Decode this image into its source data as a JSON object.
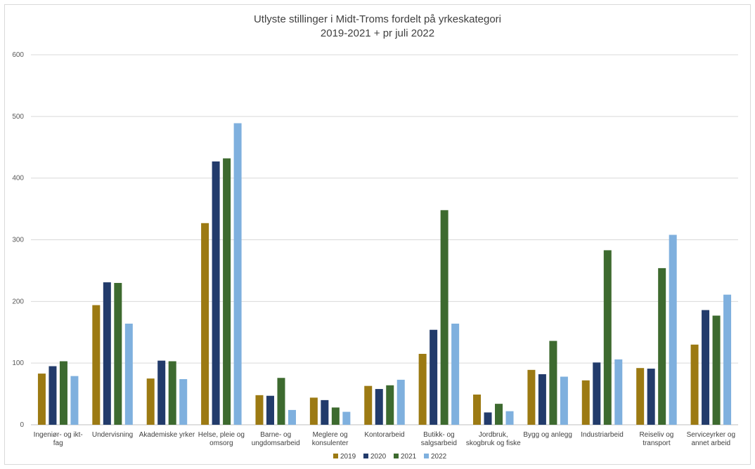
{
  "chart_data": {
    "type": "bar",
    "title": "Utlyste stillinger i Midt-Troms fordelt på yrkeskategori",
    "subtitle": "2019-2021 + pr juli 2022",
    "xlabel": "",
    "ylabel": "",
    "ylim": [
      0,
      600
    ],
    "yticks": [
      0,
      100,
      200,
      300,
      400,
      500,
      600
    ],
    "grid": true,
    "legend_position": "bottom",
    "categories": [
      [
        "Ingeniør- og ikt-",
        "fag"
      ],
      [
        "Undervisning"
      ],
      [
        "Akademiske yrker"
      ],
      [
        "Helse, pleie og",
        "omsorg"
      ],
      [
        "Barne- og",
        "ungdomsarbeid"
      ],
      [
        "Meglere og",
        "konsulenter"
      ],
      [
        "Kontorarbeid"
      ],
      [
        "Butikk- og",
        "salgsarbeid"
      ],
      [
        "Jordbruk,",
        "skogbruk og fiske"
      ],
      [
        "Bygg og anlegg"
      ],
      [
        "Industriarbeid"
      ],
      [
        "Reiseliv og",
        "transport"
      ],
      [
        "Serviceyrker og",
        "annet arbeid"
      ]
    ],
    "series": [
      {
        "name": "2019",
        "color": "#9c7a13",
        "values": [
          83,
          194,
          75,
          327,
          48,
          44,
          63,
          115,
          49,
          89,
          72,
          92,
          130
        ]
      },
      {
        "name": "2020",
        "color": "#223b6b",
        "values": [
          95,
          231,
          104,
          427,
          47,
          40,
          58,
          154,
          20,
          82,
          101,
          91,
          186
        ]
      },
      {
        "name": "2021",
        "color": "#3d6a2f",
        "values": [
          103,
          230,
          103,
          432,
          76,
          28,
          64,
          348,
          34,
          136,
          283,
          254,
          177
        ]
      },
      {
        "name": "2022",
        "color": "#7fb0de",
        "values": [
          79,
          164,
          74,
          489,
          24,
          21,
          73,
          164,
          22,
          78,
          106,
          308,
          211
        ]
      }
    ]
  }
}
